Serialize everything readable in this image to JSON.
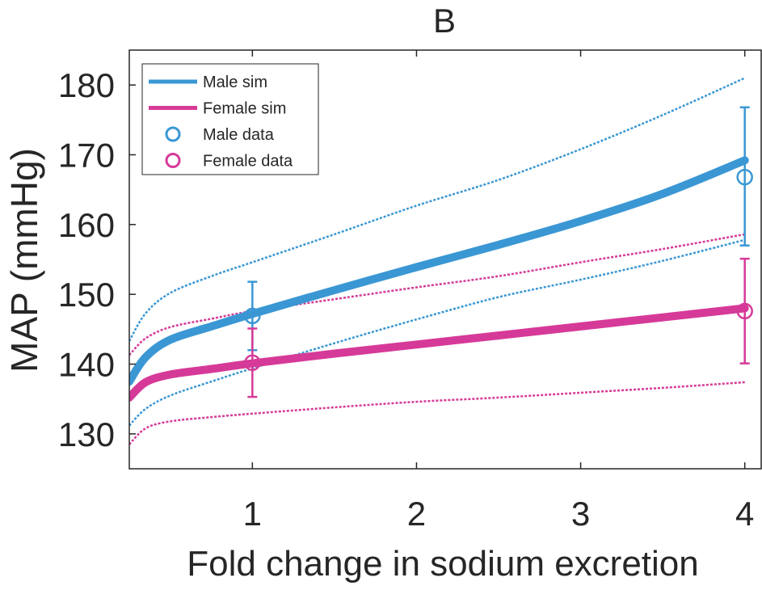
{
  "chart_data": {
    "type": "line",
    "title": "B",
    "xlabel": "Fold change in sodium excretion",
    "ylabel": "MAP (mmHg)",
    "xlim": [
      0.25,
      4.1
    ],
    "ylim": [
      125,
      185
    ],
    "xticks": [
      1,
      2,
      3,
      4
    ],
    "yticks": [
      130,
      140,
      150,
      160,
      170,
      180
    ],
    "grid": false,
    "legend_position": "top-left",
    "colors": {
      "male": "#3a97d4",
      "female": "#d63a98",
      "axis": "#262626"
    },
    "series": [
      {
        "name": "Male sim",
        "kind": "line",
        "color": "#3a97d4",
        "x": [
          0.25,
          0.35,
          0.5,
          0.75,
          1,
          1.5,
          2,
          2.5,
          3,
          3.5,
          4
        ],
        "y": [
          137.5,
          141.0,
          143.5,
          145.4,
          147.2,
          150.6,
          153.9,
          157.1,
          160.5,
          164.4,
          169.2
        ],
        "lower": [
          131.2,
          133.6,
          135.5,
          137.5,
          139.4,
          143.0,
          146.4,
          149.6,
          152.1,
          154.8,
          157.8
        ],
        "upper": [
          143.3,
          147.3,
          150.2,
          152.6,
          154.6,
          158.6,
          162.7,
          166.4,
          170.8,
          175.7,
          181.0
        ]
      },
      {
        "name": "Female sim",
        "kind": "line",
        "color": "#d63a98",
        "x": [
          0.25,
          0.35,
          0.5,
          0.75,
          1,
          1.5,
          2,
          2.5,
          3,
          3.5,
          4
        ],
        "y": [
          135.2,
          137.4,
          138.5,
          139.3,
          140.1,
          141.5,
          142.8,
          144.1,
          145.4,
          146.7,
          148.0
        ],
        "lower": [
          128.5,
          130.8,
          131.8,
          132.4,
          132.9,
          133.8,
          134.6,
          135.2,
          135.9,
          136.6,
          137.4
        ],
        "upper": [
          141.3,
          143.7,
          145.3,
          146.5,
          147.6,
          149.3,
          151.0,
          152.6,
          154.6,
          156.5,
          158.6
        ]
      },
      {
        "name": "Male data",
        "kind": "scatter",
        "color": "#3a97d4",
        "x": [
          1,
          4
        ],
        "y": [
          146.9,
          166.8
        ],
        "err_low": [
          142.0,
          157.0
        ],
        "err_high": [
          151.8,
          176.8
        ]
      },
      {
        "name": "Female data",
        "kind": "scatter",
        "color": "#d63a98",
        "x": [
          1,
          4
        ],
        "y": [
          140.2,
          147.6
        ],
        "err_low": [
          135.3,
          140.1
        ],
        "err_high": [
          145.1,
          155.1
        ]
      }
    ]
  }
}
